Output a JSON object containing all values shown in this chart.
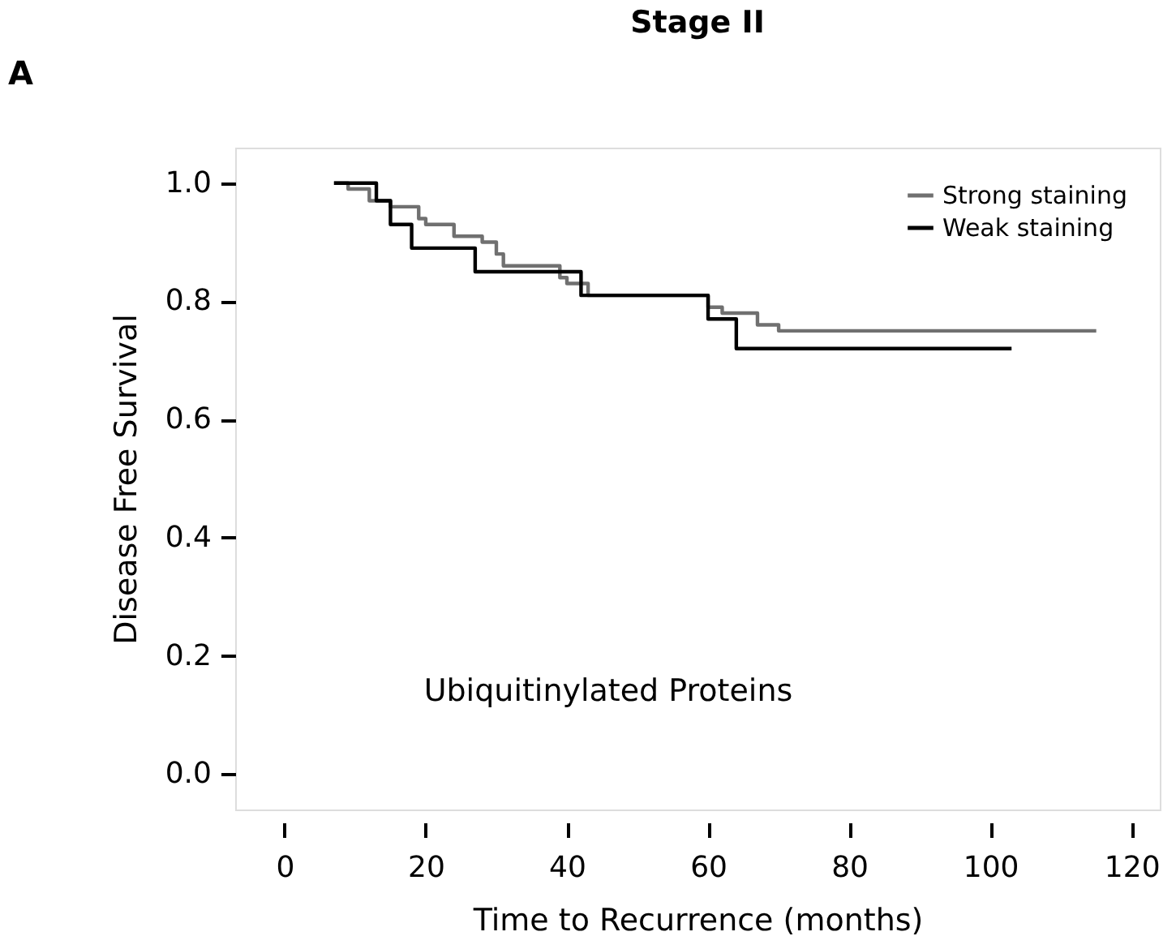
{
  "chart_data": {
    "type": "step",
    "title": "Stage II",
    "xlabel": "Time to Recurrence (months)",
    "ylabel": "Disease Free Survival",
    "annotations": [
      "Ubiquitinylated Proteins",
      "A"
    ],
    "xlim": [
      -7,
      124
    ],
    "xticks": [
      0,
      20,
      40,
      60,
      80,
      100,
      120
    ],
    "ylim": [
      -0.06,
      1.06
    ],
    "yticks": [
      {
        "value": 0,
        "label": "0.0"
      },
      0.2,
      0.4,
      0.6,
      0.8,
      {
        "value": 1,
        "label": "1.0"
      }
    ],
    "grid": false,
    "legend": "top right",
    "marker": "none",
    "line_style": "solid",
    "series": [
      {
        "name": "Strong staining",
        "color": "#707070",
        "x": [
          7,
          9,
          12,
          15,
          19,
          20,
          24,
          28,
          30,
          31,
          39,
          40,
          43,
          60,
          62,
          65,
          67,
          70,
          115
        ],
        "values": [
          1.0,
          0.99,
          0.97,
          0.96,
          0.94,
          0.93,
          0.91,
          0.9,
          0.88,
          0.86,
          0.84,
          0.83,
          0.81,
          0.79,
          0.78,
          0.78,
          0.76,
          0.75,
          0.75
        ]
      },
      {
        "name": "Weak staining",
        "color": "#000000",
        "x": [
          7,
          13,
          15,
          18,
          27,
          42,
          60,
          64,
          103
        ],
        "values": [
          1.0,
          0.97,
          0.93,
          0.89,
          0.85,
          0.81,
          0.77,
          0.72,
          0.72
        ]
      }
    ]
  }
}
